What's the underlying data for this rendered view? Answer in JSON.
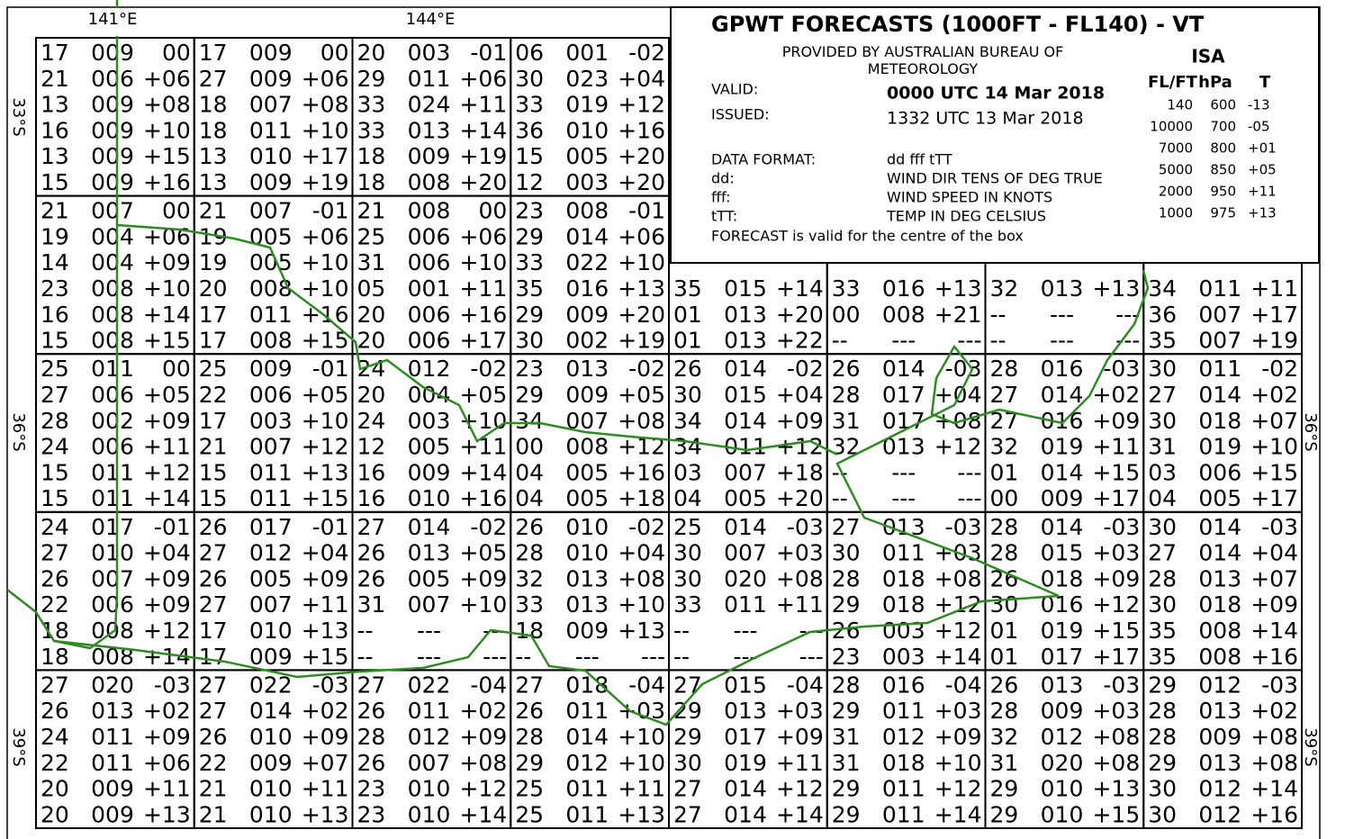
{
  "axes": {
    "lon_labels": [
      "141°E",
      "144°E"
    ],
    "lat_labels": [
      "33°S",
      "36°S",
      "39°S"
    ]
  },
  "colors": {
    "positive": "#ff0000",
    "negative": "#0000ff",
    "neutral": "#000000",
    "coast": "#2e8b22"
  },
  "grid": {
    "rows": [
      [
        [
          [
            "17",
            "009",
            "00"
          ],
          [
            "21",
            "006",
            "+06"
          ],
          [
            "13",
            "009",
            "+08"
          ],
          [
            "16",
            "009",
            "+10"
          ],
          [
            "13",
            "009",
            "+15"
          ],
          [
            "15",
            "009",
            "+16"
          ]
        ],
        [
          [
            "17",
            "009",
            "00"
          ],
          [
            "27",
            "009",
            "+06"
          ],
          [
            "18",
            "007",
            "+08"
          ],
          [
            "18",
            "011",
            "+10"
          ],
          [
            "13",
            "010",
            "+17"
          ],
          [
            "13",
            "009",
            "+19"
          ]
        ],
        [
          [
            "20",
            "003",
            "-01"
          ],
          [
            "29",
            "011",
            "+06"
          ],
          [
            "33",
            "024",
            "+11"
          ],
          [
            "33",
            "013",
            "+14"
          ],
          [
            "18",
            "009",
            "+19"
          ],
          [
            "18",
            "008",
            "+20"
          ]
        ],
        [
          [
            "06",
            "001",
            "-02"
          ],
          [
            "30",
            "023",
            "+04"
          ],
          [
            "33",
            "019",
            "+12"
          ],
          [
            "36",
            "010",
            "+16"
          ],
          [
            "15",
            "005",
            "+20"
          ],
          [
            "12",
            "003",
            "+20"
          ]
        ]
      ],
      [
        [
          [
            "21",
            "007",
            "00"
          ],
          [
            "19",
            "004",
            "+06"
          ],
          [
            "14",
            "004",
            "+09"
          ],
          [
            "23",
            "008",
            "+10"
          ],
          [
            "16",
            "008",
            "+14"
          ],
          [
            "15",
            "008",
            "+15"
          ]
        ],
        [
          [
            "21",
            "007",
            "-01"
          ],
          [
            "19",
            "005",
            "+06"
          ],
          [
            "19",
            "005",
            "+10"
          ],
          [
            "20",
            "008",
            "+10"
          ],
          [
            "17",
            "011",
            "+16"
          ],
          [
            "17",
            "008",
            "+15"
          ]
        ],
        [
          [
            "21",
            "008",
            "00"
          ],
          [
            "25",
            "006",
            "+06"
          ],
          [
            "31",
            "006",
            "+10"
          ],
          [
            "05",
            "001",
            "+11"
          ],
          [
            "20",
            "006",
            "+16"
          ],
          [
            "20",
            "006",
            "+17"
          ]
        ],
        [
          [
            "23",
            "008",
            "-01"
          ],
          [
            "29",
            "014",
            "+06"
          ],
          [
            "33",
            "022",
            "+10"
          ],
          [
            "35",
            "016",
            "+13"
          ],
          [
            "29",
            "009",
            "+20"
          ],
          [
            "30",
            "002",
            "+19"
          ]
        ],
        [
          null,
          null,
          null,
          [
            "35",
            "015",
            "+14"
          ],
          [
            "01",
            "013",
            "+20"
          ],
          [
            "01",
            "013",
            "+22"
          ]
        ],
        [
          null,
          null,
          null,
          [
            "33",
            "016",
            "+13"
          ],
          [
            "00",
            "008",
            "+21"
          ],
          [
            "--",
            "---",
            "---"
          ]
        ],
        [
          null,
          null,
          null,
          [
            "32",
            "013",
            "+13"
          ],
          [
            "--",
            "---",
            "---"
          ],
          [
            "--",
            "---",
            "---"
          ]
        ],
        [
          null,
          null,
          null,
          [
            "34",
            "011",
            "+11"
          ],
          [
            "36",
            "007",
            "+17"
          ],
          [
            "35",
            "007",
            "+19"
          ]
        ]
      ],
      [
        [
          [
            "25",
            "011",
            "00"
          ],
          [
            "27",
            "006",
            "+05"
          ],
          [
            "28",
            "002",
            "+09"
          ],
          [
            "24",
            "006",
            "+11"
          ],
          [
            "15",
            "011",
            "+12"
          ],
          [
            "15",
            "011",
            "+14"
          ]
        ],
        [
          [
            "25",
            "009",
            "-01"
          ],
          [
            "22",
            "006",
            "+05"
          ],
          [
            "17",
            "003",
            "+10"
          ],
          [
            "21",
            "007",
            "+12"
          ],
          [
            "15",
            "011",
            "+13"
          ],
          [
            "15",
            "011",
            "+15"
          ]
        ],
        [
          [
            "24",
            "012",
            "-02"
          ],
          [
            "20",
            "004",
            "+05"
          ],
          [
            "24",
            "003",
            "+10"
          ],
          [
            "12",
            "005",
            "+11"
          ],
          [
            "16",
            "009",
            "+14"
          ],
          [
            "16",
            "010",
            "+16"
          ]
        ],
        [
          [
            "23",
            "013",
            "-02"
          ],
          [
            "29",
            "009",
            "+05"
          ],
          [
            "34",
            "007",
            "+08"
          ],
          [
            "00",
            "008",
            "+12"
          ],
          [
            "04",
            "005",
            "+16"
          ],
          [
            "04",
            "005",
            "+18"
          ]
        ],
        [
          [
            "26",
            "014",
            "-02"
          ],
          [
            "30",
            "015",
            "+04"
          ],
          [
            "34",
            "014",
            "+09"
          ],
          [
            "34",
            "011",
            "+12"
          ],
          [
            "03",
            "007",
            "+18"
          ],
          [
            "04",
            "005",
            "+20"
          ]
        ],
        [
          [
            "26",
            "014",
            "-03"
          ],
          [
            "28",
            "017",
            "+04"
          ],
          [
            "31",
            "017",
            "+08"
          ],
          [
            "32",
            "013",
            "+12"
          ],
          [
            "--",
            "---",
            "---"
          ],
          [
            "--",
            "---",
            "---"
          ]
        ],
        [
          [
            "28",
            "016",
            "-03"
          ],
          [
            "27",
            "014",
            "+02"
          ],
          [
            "27",
            "016",
            "+09"
          ],
          [
            "32",
            "019",
            "+11"
          ],
          [
            "01",
            "014",
            "+15"
          ],
          [
            "00",
            "009",
            "+17"
          ]
        ],
        [
          [
            "30",
            "011",
            "-02"
          ],
          [
            "27",
            "014",
            "+02"
          ],
          [
            "30",
            "018",
            "+07"
          ],
          [
            "31",
            "019",
            "+10"
          ],
          [
            "03",
            "006",
            "+15"
          ],
          [
            "04",
            "005",
            "+17"
          ]
        ]
      ],
      [
        [
          [
            "24",
            "017",
            "-01"
          ],
          [
            "27",
            "010",
            "+04"
          ],
          [
            "26",
            "007",
            "+09"
          ],
          [
            "22",
            "006",
            "+09"
          ],
          [
            "18",
            "008",
            "+12"
          ],
          [
            "18",
            "008",
            "+14"
          ]
        ],
        [
          [
            "26",
            "017",
            "-01"
          ],
          [
            "27",
            "012",
            "+04"
          ],
          [
            "26",
            "005",
            "+09"
          ],
          [
            "27",
            "007",
            "+11"
          ],
          [
            "17",
            "010",
            "+13"
          ],
          [
            "17",
            "009",
            "+15"
          ]
        ],
        [
          [
            "27",
            "014",
            "-02"
          ],
          [
            "26",
            "013",
            "+05"
          ],
          [
            "26",
            "005",
            "+09"
          ],
          [
            "31",
            "007",
            "+10"
          ],
          [
            "--",
            "---",
            "---"
          ],
          [
            "--",
            "---",
            "---"
          ]
        ],
        [
          [
            "26",
            "010",
            "-02"
          ],
          [
            "28",
            "010",
            "+04"
          ],
          [
            "32",
            "013",
            "+08"
          ],
          [
            "33",
            "013",
            "+10"
          ],
          [
            "18",
            "009",
            "+13"
          ],
          [
            "--",
            "---",
            "---"
          ]
        ],
        [
          [
            "25",
            "014",
            "-03"
          ],
          [
            "30",
            "007",
            "+03"
          ],
          [
            "30",
            "020",
            "+08"
          ],
          [
            "33",
            "011",
            "+11"
          ],
          [
            "--",
            "---",
            "---"
          ],
          [
            "--",
            "---",
            "---"
          ]
        ],
        [
          [
            "27",
            "013",
            "-03"
          ],
          [
            "30",
            "011",
            "+03"
          ],
          [
            "28",
            "018",
            "+08"
          ],
          [
            "29",
            "018",
            "+12"
          ],
          [
            "26",
            "003",
            "+12"
          ],
          [
            "23",
            "003",
            "+14"
          ]
        ],
        [
          [
            "28",
            "014",
            "-03"
          ],
          [
            "28",
            "015",
            "+03"
          ],
          [
            "26",
            "018",
            "+09"
          ],
          [
            "30",
            "016",
            "+12"
          ],
          [
            "01",
            "019",
            "+15"
          ],
          [
            "01",
            "017",
            "+17"
          ]
        ],
        [
          [
            "30",
            "014",
            "-03"
          ],
          [
            "27",
            "014",
            "+04"
          ],
          [
            "28",
            "013",
            "+07"
          ],
          [
            "30",
            "018",
            "+09"
          ],
          [
            "35",
            "008",
            "+14"
          ],
          [
            "35",
            "008",
            "+16"
          ]
        ]
      ],
      [
        [
          [
            "27",
            "020",
            "-03"
          ],
          [
            "26",
            "013",
            "+02"
          ],
          [
            "24",
            "011",
            "+09"
          ],
          [
            "22",
            "011",
            "+06"
          ],
          [
            "20",
            "009",
            "+11"
          ],
          [
            "20",
            "009",
            "+13"
          ]
        ],
        [
          [
            "27",
            "022",
            "-03"
          ],
          [
            "27",
            "014",
            "+02"
          ],
          [
            "26",
            "010",
            "+09"
          ],
          [
            "22",
            "009",
            "+07"
          ],
          [
            "21",
            "010",
            "+11"
          ],
          [
            "21",
            "010",
            "+13"
          ]
        ],
        [
          [
            "27",
            "022",
            "-04"
          ],
          [
            "26",
            "011",
            "+02"
          ],
          [
            "28",
            "012",
            "+09"
          ],
          [
            "26",
            "007",
            "+08"
          ],
          [
            "23",
            "010",
            "+12"
          ],
          [
            "23",
            "010",
            "+14"
          ]
        ],
        [
          [
            "27",
            "018",
            "-04"
          ],
          [
            "26",
            "011",
            "+03"
          ],
          [
            "28",
            "014",
            "+10"
          ],
          [
            "29",
            "012",
            "+10"
          ],
          [
            "25",
            "011",
            "+11"
          ],
          [
            "25",
            "011",
            "+13"
          ]
        ],
        [
          [
            "27",
            "015",
            "-04"
          ],
          [
            "29",
            "013",
            "+03"
          ],
          [
            "29",
            "017",
            "+09"
          ],
          [
            "30",
            "019",
            "+11"
          ],
          [
            "27",
            "014",
            "+12"
          ],
          [
            "27",
            "014",
            "+14"
          ]
        ],
        [
          [
            "28",
            "016",
            "-04"
          ],
          [
            "29",
            "011",
            "+03"
          ],
          [
            "31",
            "012",
            "+09"
          ],
          [
            "31",
            "018",
            "+10"
          ],
          [
            "29",
            "011",
            "+12"
          ],
          [
            "29",
            "011",
            "+14"
          ]
        ],
        [
          [
            "26",
            "013",
            "-03"
          ],
          [
            "28",
            "009",
            "+03"
          ],
          [
            "32",
            "012",
            "+08"
          ],
          [
            "31",
            "020",
            "+08"
          ],
          [
            "29",
            "010",
            "+13"
          ],
          [
            "29",
            "010",
            "+15"
          ]
        ],
        [
          [
            "29",
            "012",
            "-03"
          ],
          [
            "28",
            "013",
            "+02"
          ],
          [
            "28",
            "009",
            "+08"
          ],
          [
            "29",
            "013",
            "+08"
          ],
          [
            "30",
            "012",
            "+14"
          ],
          [
            "30",
            "012",
            "+16"
          ]
        ]
      ]
    ]
  },
  "info": {
    "title": "GPWT FORECASTS (1000FT - FL140) - VT",
    "provider": "PROVIDED BY AUSTRALIAN BUREAU OF METEOROLOGY",
    "valid_label": "VALID:",
    "valid": "0000 UTC 14 Mar 2018",
    "issued_label": "ISSUED:",
    "issued": "1332 UTC 13 Mar 2018",
    "format_rows": [
      [
        "DATA FORMAT:",
        "dd fff tTT"
      ],
      [
        "dd:",
        "WIND DIR TENS OF DEG TRUE"
      ],
      [
        "fff:",
        "WIND SPEED IN KNOTS"
      ],
      [
        "tTT:",
        "TEMP IN DEG CELSIUS"
      ]
    ],
    "note": "FORECAST is valid for the centre of the box",
    "isa": {
      "title": "ISA",
      "header": [
        "FL/FT",
        "hPa",
        "T"
      ],
      "rows": [
        [
          "140",
          "600",
          "-13"
        ],
        [
          "10000",
          "700",
          "-05"
        ],
        [
          "7000",
          "800",
          "+01"
        ],
        [
          "5000",
          "850",
          "+05"
        ],
        [
          "2000",
          "950",
          "+11"
        ],
        [
          "1000",
          "975",
          "+13"
        ]
      ]
    }
  }
}
